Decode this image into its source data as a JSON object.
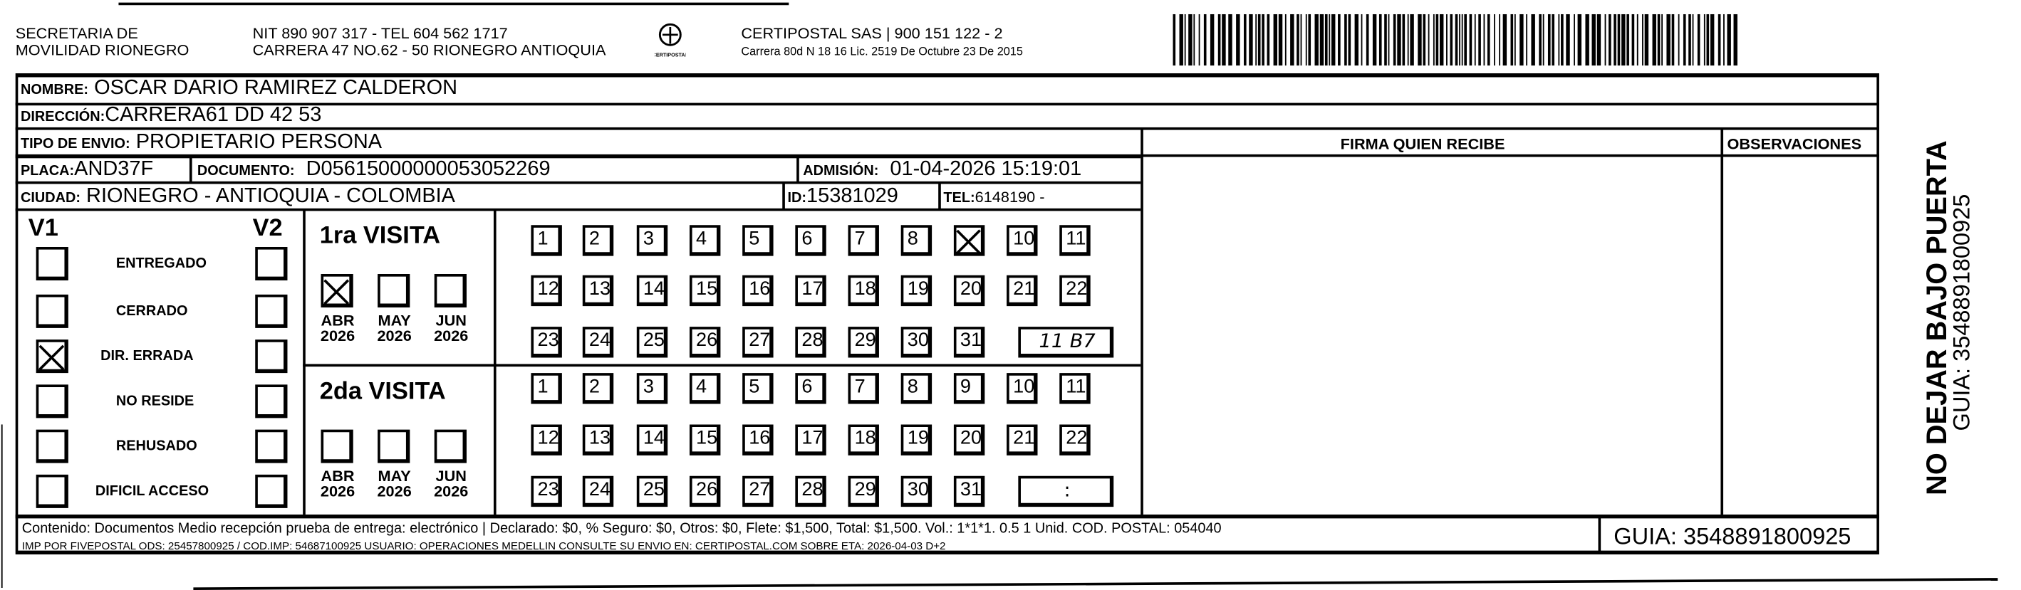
{
  "header": {
    "sender_line1": "SECRETARIA  DE",
    "sender_line2": "MOVILIDAD RIONEGRO",
    "nit_line": "NIT 890 907 317 - TEL 604 562 1717",
    "address_line": "CARRERA 47 NO.62 - 50 RIONEGRO ANTIOQUIA",
    "logo_text": "CERTIPOSTAL",
    "company_line": "CERTIPOSTAL SAS | 900 151 122 - 2",
    "license_line": "Carrera 80d N 18 16  Lic. 2519 De Octubre 23 De 2015"
  },
  "recipient": {
    "nombre_label": "NOMBRE:",
    "nombre": "OSCAR DARIO RAMIREZ CALDERON",
    "direccion_label": "DIRECCIÓN:",
    "direccion": "CARRERA61 DD 42 53",
    "tipo_label": "TIPO DE ENVIO:",
    "tipo": "PROPIETARIO PERSONA",
    "placa_label": "PLACA:",
    "placa": "AND37F",
    "documento_label": "DOCUMENTO:",
    "documento": "D05615000000053052269",
    "admision_label": "ADMISIÓN:",
    "admision": "01-04-2026 15:19:01",
    "ciudad_label": "CIUDAD:",
    "ciudad": "RIONEGRO - ANTIOQUIA - COLOMBIA",
    "id_label": "ID:",
    "id": "15381029",
    "tel_label": "TEL:",
    "tel": "6148190 -"
  },
  "firma_label": "FIRMA QUIEN RECIBE",
  "observaciones_label": "OBSERVACIONES",
  "status": {
    "v1_label": "V1",
    "v2_label": "V2",
    "options": [
      "ENTREGADO",
      "CERRADO",
      "DIR. ERRADA",
      "NO RESIDE",
      "REHUSADO",
      "DIFICIL ACCESO"
    ],
    "v1_checked": [
      false,
      false,
      true,
      false,
      false,
      false
    ],
    "v2_checked": [
      false,
      false,
      false,
      false,
      false,
      false
    ]
  },
  "visits": [
    {
      "title": "1ra VISITA",
      "months": [
        {
          "m": "ABR",
          "y": "2026",
          "checked": true
        },
        {
          "m": "MAY",
          "y": "2026",
          "checked": false
        },
        {
          "m": "JUN",
          "y": "2026",
          "checked": false
        }
      ],
      "crossed_day": 9,
      "time_handwritten": "11 B7"
    },
    {
      "title": "2da VISITA",
      "months": [
        {
          "m": "ABR",
          "y": "2026",
          "checked": false
        },
        {
          "m": "MAY",
          "y": "2026",
          "checked": false
        },
        {
          "m": "JUN",
          "y": "2026",
          "checked": false
        }
      ],
      "crossed_day": null,
      "time_placeholder": ":"
    }
  ],
  "side": {
    "warning": "NO DEJAR BAJO PUERTA",
    "guia": "GUIA: 3548891800925"
  },
  "footer": {
    "line1": "Contenido: Documentos Medio recepción prueba de entrega: electrónico | Declarado: $0, % Seguro: $0, Otros: $0, Flete: $1,500, Total: $1,500. Vol.: 1*1*1. 0.5  1 Unid. COD. POSTAL: 054040",
    "line2": "IMP POR FIVEPOSTAL ODS: 25457800925 / COD.IMP: 54687100925 USUARIO: OPERACIONES MEDELLIN CONSULTE SU ENVIO EN: CERTIPOSTAL.COM SOBRE ETA: 2026-04-03 D+2",
    "guia": "GUIA: 3548891800925"
  }
}
